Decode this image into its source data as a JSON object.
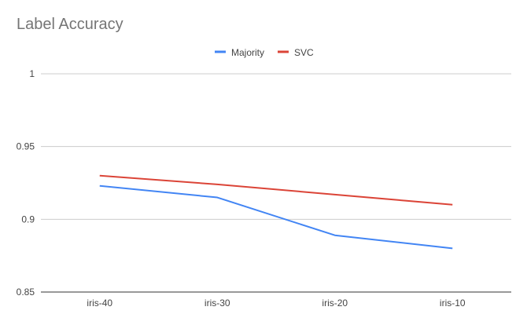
{
  "chart_data": {
    "type": "line",
    "title": "Label Accuracy",
    "categories": [
      "iris-40",
      "iris-30",
      "iris-20",
      "iris-10"
    ],
    "series": [
      {
        "name": "Majority",
        "color": "#4285f4",
        "values": [
          0.923,
          0.915,
          0.889,
          0.88
        ]
      },
      {
        "name": "SVC",
        "color": "#db4437",
        "values": [
          0.93,
          0.924,
          0.917,
          0.91
        ]
      }
    ],
    "ylim": [
      0.85,
      1
    ],
    "yticks": [
      "0.85",
      "0.9",
      "0.95",
      "1"
    ],
    "grid": true,
    "legend": "top-center"
  }
}
